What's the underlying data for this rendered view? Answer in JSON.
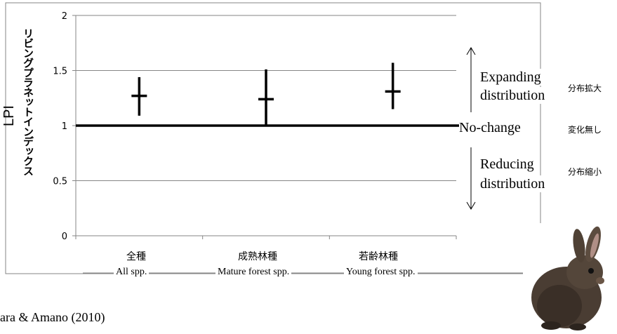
{
  "chart_data": {
    "type": "errorbar",
    "categories_jp": [
      "全種",
      "成熟林種",
      "若齢林種"
    ],
    "categories_en": [
      "All spp.",
      "Mature forest spp.",
      "Young forest spp."
    ],
    "points": [
      {
        "category": "全種",
        "mean": 1.27,
        "low": 1.09,
        "high": 1.44
      },
      {
        "category": "成熟林種",
        "mean": 1.24,
        "low": 1.0,
        "high": 1.51
      },
      {
        "category": "若齢林種",
        "mean": 1.31,
        "low": 1.15,
        "high": 1.57
      }
    ],
    "ylim": [
      0,
      2
    ],
    "yticks": [
      "0",
      "0.5",
      "1",
      "1.5",
      "2"
    ],
    "reference_line": 1,
    "grid": true,
    "ylabel_en": "LPI",
    "ylabel_jp": "リビングプラネットインデックス"
  },
  "annotations": {
    "expanding_en_1": "Expanding",
    "expanding_en_2": "distribution",
    "expanding_jp": "分布拡大",
    "nochange_en": "No-change",
    "nochange_jp": "変化無し",
    "reducing_en_1": "Reducing",
    "reducing_en_2": "distribution",
    "reducing_jp": "分布縮小"
  },
  "citation": "ara & Amano (2010)",
  "image": {
    "icon": "rabbit-photo"
  },
  "colors": {
    "line": "#000000",
    "grid": "#868686",
    "frame": "#868686",
    "background": "#ffffff"
  }
}
